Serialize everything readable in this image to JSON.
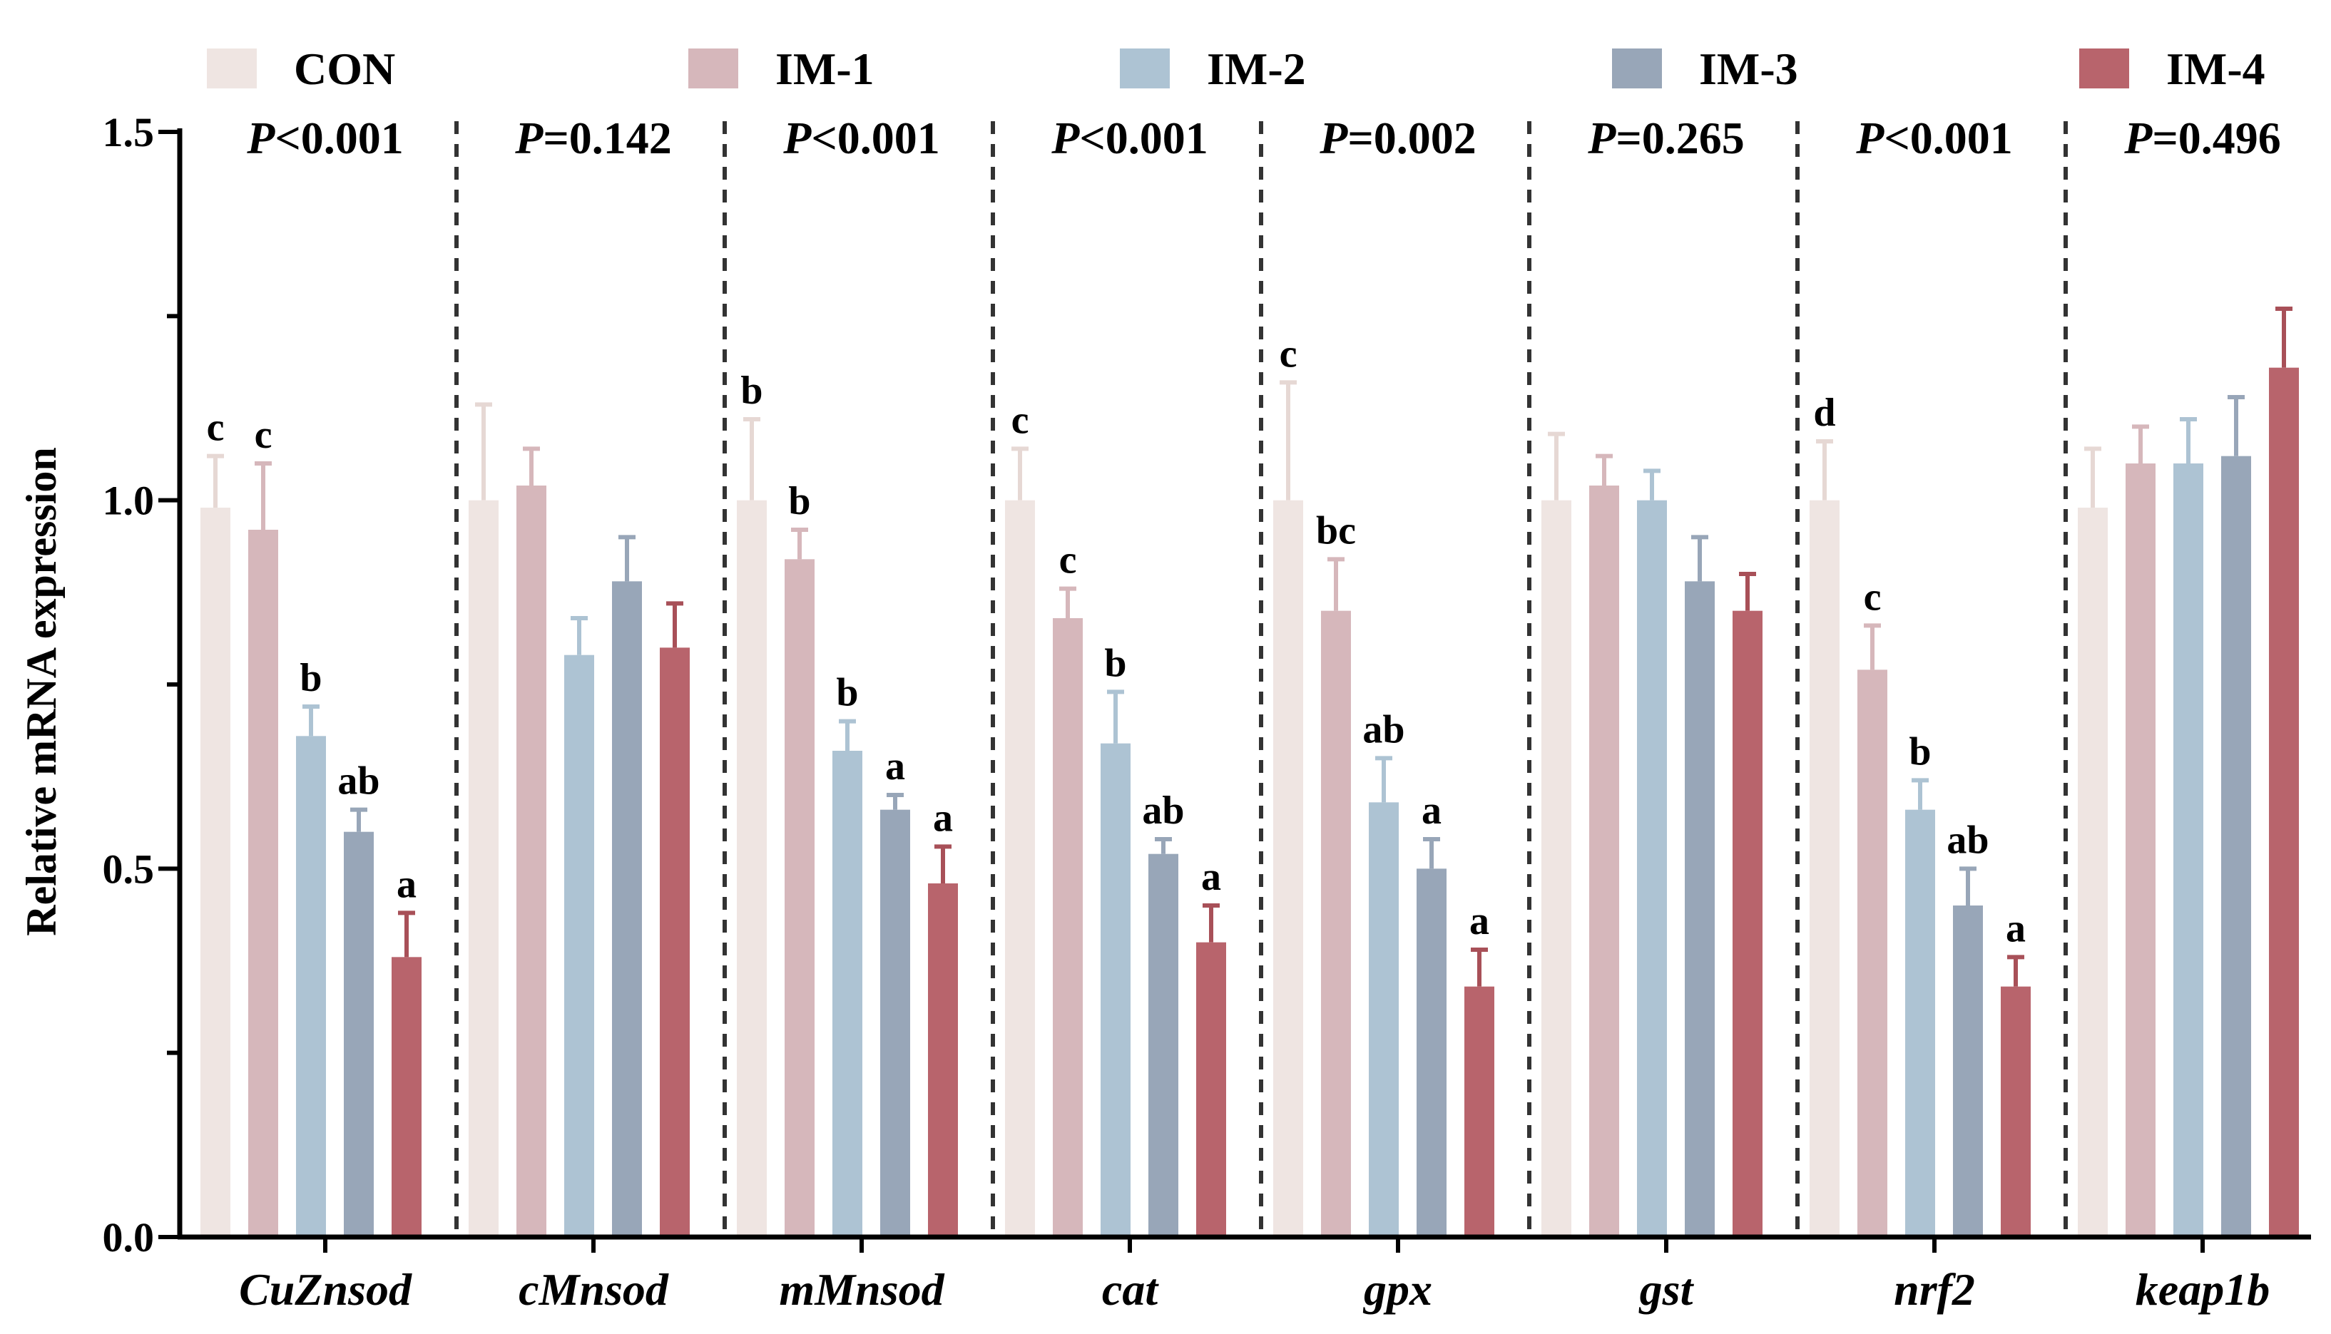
{
  "chart_data": {
    "type": "bar",
    "ylabel": "Relative mRNA expression",
    "ylim": [
      0,
      1.5
    ],
    "yticks": [
      "0.0",
      "0.5",
      "1.0",
      "1.5"
    ],
    "categories": [
      "CuZnsod",
      "cMnsod",
      "mMnsod",
      "cat",
      "gpx",
      "gst",
      "nrf2",
      "keap1b"
    ],
    "p_values": [
      "P<0.001",
      "P=0.142",
      "P<0.001",
      "P<0.001",
      "P=0.002",
      "P=0.265",
      "P<0.001",
      "P=0.496"
    ],
    "series": [
      {
        "name": "CON",
        "color": "#efe5e2",
        "values": [
          0.99,
          1.0,
          1.0,
          1.0,
          1.0,
          1.0,
          1.0,
          0.99
        ],
        "errors": [
          0.07,
          0.13,
          0.11,
          0.07,
          0.16,
          0.09,
          0.08,
          0.08
        ],
        "letters": [
          "c",
          "",
          "b",
          "c",
          "c",
          "",
          "d",
          ""
        ]
      },
      {
        "name": "IM-1",
        "color": "#d6b7bb",
        "values": [
          0.96,
          1.02,
          0.92,
          0.84,
          0.85,
          1.02,
          0.77,
          1.05
        ],
        "errors": [
          0.09,
          0.05,
          0.04,
          0.04,
          0.07,
          0.04,
          0.06,
          0.05
        ],
        "letters": [
          "c",
          "",
          "b",
          "c",
          "bc",
          "",
          "c",
          ""
        ]
      },
      {
        "name": "IM-2",
        "color": "#adc3d3",
        "values": [
          0.68,
          0.79,
          0.66,
          0.67,
          0.59,
          1.0,
          0.58,
          1.05
        ],
        "errors": [
          0.04,
          0.05,
          0.04,
          0.07,
          0.06,
          0.04,
          0.04,
          0.06
        ],
        "letters": [
          "b",
          "",
          "b",
          "b",
          "ab",
          "",
          "b",
          ""
        ]
      },
      {
        "name": "IM-3",
        "color": "#98a6b8",
        "values": [
          0.55,
          0.89,
          0.58,
          0.52,
          0.5,
          0.89,
          0.45,
          1.06
        ],
        "errors": [
          0.03,
          0.06,
          0.02,
          0.02,
          0.04,
          0.06,
          0.05,
          0.08
        ],
        "letters": [
          "ab",
          "",
          "a",
          "ab",
          "a",
          "",
          "ab",
          ""
        ]
      },
      {
        "name": "IM-4",
        "color": "#b8646c",
        "values": [
          0.38,
          0.8,
          0.48,
          0.4,
          0.34,
          0.85,
          0.34,
          1.18
        ],
        "errors": [
          0.06,
          0.06,
          0.05,
          0.05,
          0.05,
          0.05,
          0.04,
          0.08
        ],
        "letters": [
          "a",
          "",
          "a",
          "a",
          "a",
          "",
          "a",
          ""
        ]
      }
    ]
  }
}
